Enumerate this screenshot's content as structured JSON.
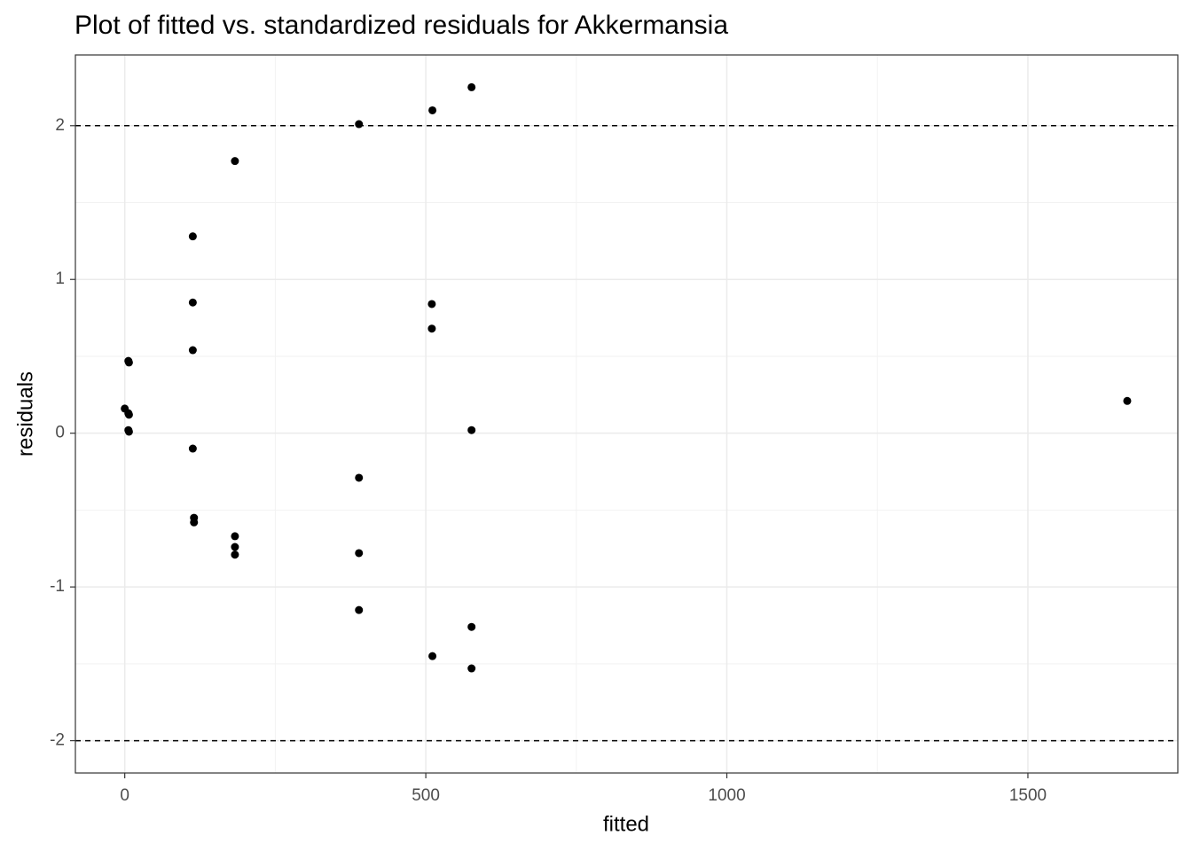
{
  "chart_data": {
    "type": "scatter",
    "title": "Plot of fitted vs. standardized residuals for Akkermansia",
    "x_label": "fitted",
    "y_label": "residuals",
    "x": [
      0,
      6,
      7,
      6,
      7,
      6,
      7,
      113,
      113,
      113,
      113,
      115,
      115,
      183,
      183,
      183,
      183,
      389,
      389,
      389,
      389,
      511,
      510,
      510,
      511,
      576,
      576,
      576,
      576,
      1665
    ],
    "y": [
      0.16,
      0.13,
      0.12,
      0.47,
      0.46,
      0.02,
      0.01,
      1.28,
      0.85,
      0.54,
      -0.1,
      -0.55,
      -0.58,
      1.77,
      -0.67,
      -0.74,
      -0.79,
      2.01,
      -0.29,
      -0.78,
      -1.15,
      2.1,
      0.84,
      0.68,
      -1.45,
      2.25,
      0.02,
      -1.26,
      -1.53,
      0.21
    ],
    "color": "#000000",
    "xlim": [
      -82,
      1749
    ],
    "ylim": [
      -2.21,
      2.46
    ],
    "xticks": [
      0,
      500,
      1000,
      1500
    ],
    "yticks": [
      -2,
      -1,
      0,
      1,
      2
    ],
    "hlines": [
      2,
      -2
    ],
    "grid": true
  }
}
